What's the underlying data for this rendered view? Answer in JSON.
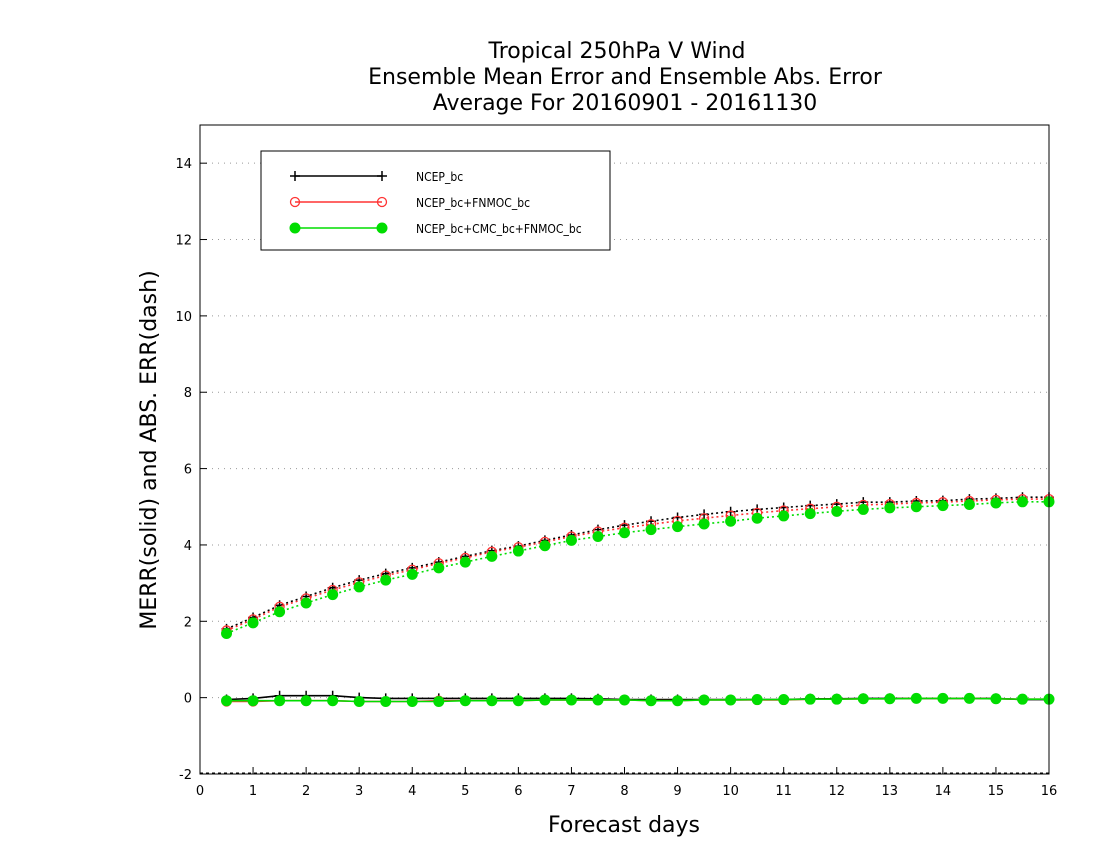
{
  "chart_data": {
    "type": "line",
    "title": [
      "Tropical 250hPa V Wind",
      "Ensemble Mean Error and Ensemble Abs. Error",
      "Average For 20160901 - 20161130"
    ],
    "xlabel": "Forecast days",
    "ylabel": "MERR(solid) and ABS. ERR(dash)",
    "xlim": [
      0,
      16
    ],
    "ylim": [
      -2,
      15
    ],
    "xticks": [
      0,
      1,
      2,
      3,
      4,
      5,
      6,
      7,
      8,
      9,
      10,
      11,
      12,
      13,
      14,
      15,
      16
    ],
    "yticks": [
      -2,
      0,
      2,
      4,
      6,
      8,
      10,
      12,
      14
    ],
    "grid": true,
    "legend_position": "top-left",
    "x": [
      0.5,
      1,
      1.5,
      2,
      2.5,
      3,
      3.5,
      4,
      4.5,
      5,
      5.5,
      6,
      6.5,
      7,
      7.5,
      8,
      8.5,
      9,
      9.5,
      10,
      10.5,
      11,
      11.5,
      12,
      12.5,
      13,
      13.5,
      14,
      14.5,
      15,
      15.5,
      16
    ],
    "series": [
      {
        "name": "NCEP_bc",
        "color": "#000000",
        "marker": "plus",
        "merr": [
          -0.05,
          -0.02,
          0.05,
          0.05,
          0.05,
          0.0,
          -0.02,
          -0.02,
          -0.02,
          -0.02,
          -0.02,
          -0.02,
          -0.02,
          -0.02,
          -0.03,
          -0.05,
          -0.05,
          -0.05,
          -0.05,
          -0.05,
          -0.05,
          -0.05,
          -0.03,
          -0.03,
          -0.02,
          -0.02,
          -0.02,
          -0.02,
          -0.02,
          -0.02,
          -0.05,
          -0.05
        ],
        "abs_err": [
          1.8,
          2.1,
          2.42,
          2.65,
          2.88,
          3.08,
          3.25,
          3.4,
          3.55,
          3.7,
          3.85,
          3.97,
          4.12,
          4.26,
          4.4,
          4.52,
          4.62,
          4.72,
          4.8,
          4.87,
          4.93,
          4.98,
          5.03,
          5.07,
          5.12,
          5.12,
          5.15,
          5.16,
          5.2,
          5.22,
          5.25,
          5.25
        ]
      },
      {
        "name": "NCEP_bc+FNMOC_bc",
        "color": "#ff3333",
        "marker": "open-circle",
        "merr": [
          -0.1,
          -0.1,
          -0.08,
          -0.08,
          -0.08,
          -0.1,
          -0.1,
          -0.1,
          -0.08,
          -0.08,
          -0.08,
          -0.08,
          -0.06,
          -0.06,
          -0.06,
          -0.06,
          -0.08,
          -0.08,
          -0.06,
          -0.06,
          -0.06,
          -0.06,
          -0.04,
          -0.04,
          -0.03,
          -0.03,
          -0.02,
          -0.02,
          -0.02,
          -0.03,
          -0.04,
          -0.04
        ],
        "abs_err": [
          1.76,
          2.05,
          2.38,
          2.6,
          2.82,
          3.02,
          3.2,
          3.35,
          3.52,
          3.66,
          3.82,
          3.94,
          4.08,
          4.22,
          4.35,
          4.45,
          4.54,
          4.63,
          4.7,
          4.77,
          4.84,
          4.9,
          4.95,
          5.0,
          5.05,
          5.07,
          5.1,
          5.12,
          5.15,
          5.18,
          5.2,
          5.2
        ]
      },
      {
        "name": "NCEP_bc+CMC_bc+FNMOC_bc",
        "color": "#00dd00",
        "marker": "filled-circle",
        "merr": [
          -0.08,
          -0.08,
          -0.08,
          -0.08,
          -0.08,
          -0.1,
          -0.1,
          -0.1,
          -0.1,
          -0.08,
          -0.08,
          -0.08,
          -0.06,
          -0.06,
          -0.06,
          -0.06,
          -0.08,
          -0.08,
          -0.06,
          -0.06,
          -0.05,
          -0.05,
          -0.04,
          -0.04,
          -0.03,
          -0.03,
          -0.02,
          -0.02,
          -0.02,
          -0.03,
          -0.04,
          -0.04
        ],
        "abs_err": [
          1.68,
          1.96,
          2.25,
          2.48,
          2.7,
          2.9,
          3.08,
          3.23,
          3.4,
          3.55,
          3.7,
          3.84,
          3.98,
          4.12,
          4.22,
          4.32,
          4.4,
          4.48,
          4.55,
          4.62,
          4.7,
          4.76,
          4.82,
          4.88,
          4.93,
          4.97,
          5.0,
          5.03,
          5.06,
          5.1,
          5.13,
          5.13
        ]
      }
    ]
  }
}
